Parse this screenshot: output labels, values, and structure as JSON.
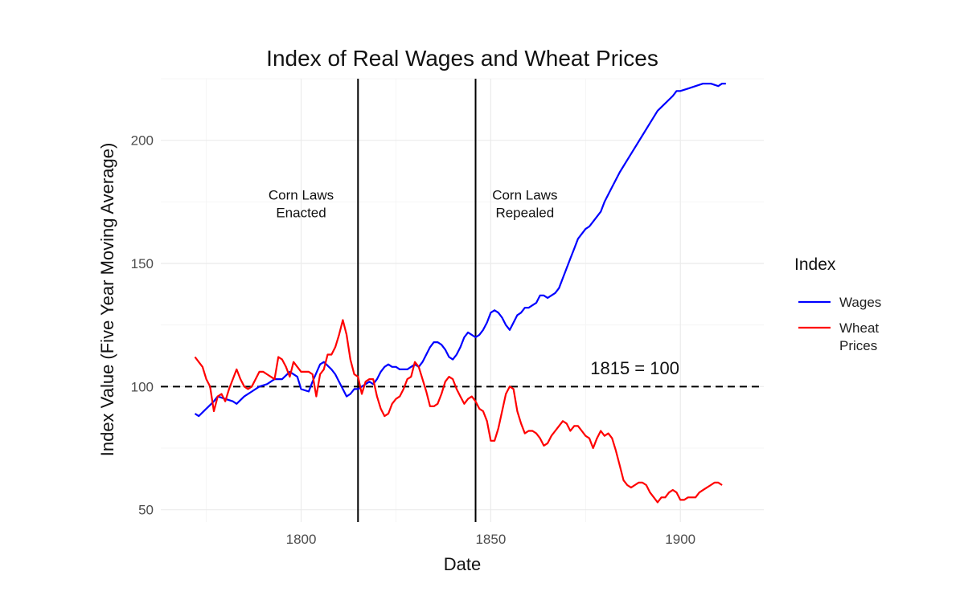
{
  "chart_data": {
    "type": "line",
    "title": "Index of Real Wages and Wheat Prices",
    "xlabel": "Date",
    "ylabel": "Index Value (Five Year Moving Average)",
    "xlim": [
      1763,
      1922
    ],
    "ylim": [
      45,
      225
    ],
    "x_ticks": [
      1800,
      1850,
      1900
    ],
    "y_ticks": [
      50,
      100,
      150,
      200
    ],
    "grid": true,
    "legend": {
      "title": "Index",
      "position": "right"
    },
    "series": [
      {
        "name": "Wages",
        "color": "#0000ff",
        "points": [
          [
            1772,
            89
          ],
          [
            1773,
            88
          ],
          [
            1775,
            91
          ],
          [
            1777,
            94
          ],
          [
            1778,
            96
          ],
          [
            1780,
            95
          ],
          [
            1782,
            94
          ],
          [
            1783,
            93
          ],
          [
            1785,
            96
          ],
          [
            1787,
            98
          ],
          [
            1789,
            100
          ],
          [
            1791,
            101
          ],
          [
            1793,
            103
          ],
          [
            1795,
            103
          ],
          [
            1797,
            106
          ],
          [
            1799,
            104
          ],
          [
            1800,
            99
          ],
          [
            1802,
            98
          ],
          [
            1803,
            102
          ],
          [
            1805,
            109
          ],
          [
            1806,
            110
          ],
          [
            1808,
            107
          ],
          [
            1809,
            105
          ],
          [
            1810,
            102
          ],
          [
            1811,
            99
          ],
          [
            1812,
            96
          ],
          [
            1813,
            97
          ],
          [
            1814,
            99
          ],
          [
            1815,
            99
          ],
          [
            1816,
            100
          ],
          [
            1817,
            101
          ],
          [
            1818,
            102
          ],
          [
            1819,
            101
          ],
          [
            1820,
            103
          ],
          [
            1821,
            106
          ],
          [
            1822,
            108
          ],
          [
            1823,
            109
          ],
          [
            1824,
            108
          ],
          [
            1825,
            108
          ],
          [
            1826,
            107
          ],
          [
            1827,
            107
          ],
          [
            1828,
            107
          ],
          [
            1829,
            108
          ],
          [
            1830,
            109
          ],
          [
            1831,
            108
          ],
          [
            1832,
            110
          ],
          [
            1833,
            113
          ],
          [
            1834,
            116
          ],
          [
            1835,
            118
          ],
          [
            1836,
            118
          ],
          [
            1837,
            117
          ],
          [
            1838,
            115
          ],
          [
            1839,
            112
          ],
          [
            1840,
            111
          ],
          [
            1841,
            113
          ],
          [
            1842,
            116
          ],
          [
            1843,
            120
          ],
          [
            1844,
            122
          ],
          [
            1845,
            121
          ],
          [
            1846,
            120
          ],
          [
            1847,
            121
          ],
          [
            1848,
            123
          ],
          [
            1849,
            126
          ],
          [
            1850,
            130
          ],
          [
            1851,
            131
          ],
          [
            1852,
            130
          ],
          [
            1853,
            128
          ],
          [
            1854,
            125
          ],
          [
            1855,
            123
          ],
          [
            1856,
            126
          ],
          [
            1857,
            129
          ],
          [
            1858,
            130
          ],
          [
            1859,
            132
          ],
          [
            1860,
            132
          ],
          [
            1861,
            133
          ],
          [
            1862,
            134
          ],
          [
            1863,
            137
          ],
          [
            1864,
            137
          ],
          [
            1865,
            136
          ],
          [
            1866,
            137
          ],
          [
            1867,
            138
          ],
          [
            1868,
            140
          ],
          [
            1869,
            144
          ],
          [
            1870,
            148
          ],
          [
            1871,
            152
          ],
          [
            1872,
            156
          ],
          [
            1873,
            160
          ],
          [
            1874,
            162
          ],
          [
            1875,
            164
          ],
          [
            1876,
            165
          ],
          [
            1877,
            167
          ],
          [
            1878,
            169
          ],
          [
            1879,
            171
          ],
          [
            1880,
            175
          ],
          [
            1882,
            181
          ],
          [
            1884,
            187
          ],
          [
            1886,
            192
          ],
          [
            1888,
            197
          ],
          [
            1890,
            202
          ],
          [
            1892,
            207
          ],
          [
            1894,
            212
          ],
          [
            1896,
            215
          ],
          [
            1898,
            218
          ],
          [
            1899,
            220
          ],
          [
            1900,
            220
          ],
          [
            1902,
            221
          ],
          [
            1904,
            222
          ],
          [
            1906,
            223
          ],
          [
            1908,
            223
          ],
          [
            1910,
            222
          ],
          [
            1911,
            223
          ],
          [
            1912,
            223
          ]
        ]
      },
      {
        "name": "Wheat Prices",
        "color": "#ff0000",
        "points": [
          [
            1772,
            112
          ],
          [
            1773,
            110
          ],
          [
            1774,
            108
          ],
          [
            1775,
            103
          ],
          [
            1776,
            100
          ],
          [
            1777,
            90
          ],
          [
            1778,
            96
          ],
          [
            1779,
            97
          ],
          [
            1780,
            94
          ],
          [
            1781,
            99
          ],
          [
            1782,
            103
          ],
          [
            1783,
            107
          ],
          [
            1784,
            103
          ],
          [
            1785,
            100
          ],
          [
            1786,
            99
          ],
          [
            1787,
            100
          ],
          [
            1788,
            103
          ],
          [
            1789,
            106
          ],
          [
            1790,
            106
          ],
          [
            1791,
            105
          ],
          [
            1792,
            104
          ],
          [
            1793,
            103
          ],
          [
            1794,
            112
          ],
          [
            1795,
            111
          ],
          [
            1796,
            108
          ],
          [
            1797,
            104
          ],
          [
            1798,
            110
          ],
          [
            1799,
            108
          ],
          [
            1800,
            106
          ],
          [
            1801,
            106
          ],
          [
            1802,
            106
          ],
          [
            1803,
            105
          ],
          [
            1804,
            96
          ],
          [
            1805,
            105
          ],
          [
            1806,
            107
          ],
          [
            1807,
            113
          ],
          [
            1808,
            113
          ],
          [
            1809,
            116
          ],
          [
            1810,
            121
          ],
          [
            1811,
            127
          ],
          [
            1812,
            121
          ],
          [
            1813,
            111
          ],
          [
            1814,
            105
          ],
          [
            1815,
            104
          ],
          [
            1816,
            97
          ],
          [
            1817,
            102
          ],
          [
            1818,
            103
          ],
          [
            1819,
            103
          ],
          [
            1820,
            96
          ],
          [
            1821,
            91
          ],
          [
            1822,
            88
          ],
          [
            1823,
            89
          ],
          [
            1824,
            93
          ],
          [
            1825,
            95
          ],
          [
            1826,
            96
          ],
          [
            1827,
            99
          ],
          [
            1828,
            103
          ],
          [
            1829,
            104
          ],
          [
            1830,
            110
          ],
          [
            1831,
            108
          ],
          [
            1832,
            103
          ],
          [
            1833,
            98
          ],
          [
            1834,
            92
          ],
          [
            1835,
            92
          ],
          [
            1836,
            93
          ],
          [
            1837,
            97
          ],
          [
            1838,
            102
          ],
          [
            1839,
            104
          ],
          [
            1840,
            103
          ],
          [
            1841,
            99
          ],
          [
            1842,
            96
          ],
          [
            1843,
            93
          ],
          [
            1844,
            95
          ],
          [
            1845,
            96
          ],
          [
            1846,
            94
          ],
          [
            1847,
            91
          ],
          [
            1848,
            90
          ],
          [
            1849,
            86
          ],
          [
            1850,
            78
          ],
          [
            1851,
            78
          ],
          [
            1852,
            83
          ],
          [
            1853,
            90
          ],
          [
            1854,
            97
          ],
          [
            1855,
            100
          ],
          [
            1856,
            99
          ],
          [
            1857,
            90
          ],
          [
            1858,
            85
          ],
          [
            1859,
            81
          ],
          [
            1860,
            82
          ],
          [
            1861,
            82
          ],
          [
            1862,
            81
          ],
          [
            1863,
            79
          ],
          [
            1864,
            76
          ],
          [
            1865,
            77
          ],
          [
            1866,
            80
          ],
          [
            1867,
            82
          ],
          [
            1868,
            84
          ],
          [
            1869,
            86
          ],
          [
            1870,
            85
          ],
          [
            1871,
            82
          ],
          [
            1872,
            84
          ],
          [
            1873,
            84
          ],
          [
            1874,
            82
          ],
          [
            1875,
            80
          ],
          [
            1876,
            79
          ],
          [
            1877,
            75
          ],
          [
            1878,
            79
          ],
          [
            1879,
            82
          ],
          [
            1880,
            80
          ],
          [
            1881,
            81
          ],
          [
            1882,
            79
          ],
          [
            1883,
            74
          ],
          [
            1884,
            68
          ],
          [
            1885,
            62
          ],
          [
            1886,
            60
          ],
          [
            1887,
            59
          ],
          [
            1888,
            60
          ],
          [
            1889,
            61
          ],
          [
            1890,
            61
          ],
          [
            1891,
            60
          ],
          [
            1892,
            57
          ],
          [
            1893,
            55
          ],
          [
            1894,
            53
          ],
          [
            1895,
            55
          ],
          [
            1896,
            55
          ],
          [
            1897,
            57
          ],
          [
            1898,
            58
          ],
          [
            1899,
            57
          ],
          [
            1900,
            54
          ],
          [
            1901,
            54
          ],
          [
            1902,
            55
          ],
          [
            1903,
            55
          ],
          [
            1904,
            55
          ],
          [
            1905,
            57
          ],
          [
            1906,
            58
          ],
          [
            1907,
            59
          ],
          [
            1908,
            60
          ],
          [
            1909,
            61
          ],
          [
            1910,
            61
          ],
          [
            1911,
            60
          ]
        ]
      }
    ],
    "vlines": [
      1815,
      1846
    ],
    "hline": 100,
    "annotations": [
      {
        "lines": [
          "Corn Laws",
          "Enacted"
        ],
        "x": 1800,
        "y": 176
      },
      {
        "lines": [
          "Corn Laws",
          "Repealed"
        ],
        "x": 1859,
        "y": 176
      },
      {
        "text": "1815 = 100",
        "x": 1888,
        "y": 105
      }
    ]
  }
}
